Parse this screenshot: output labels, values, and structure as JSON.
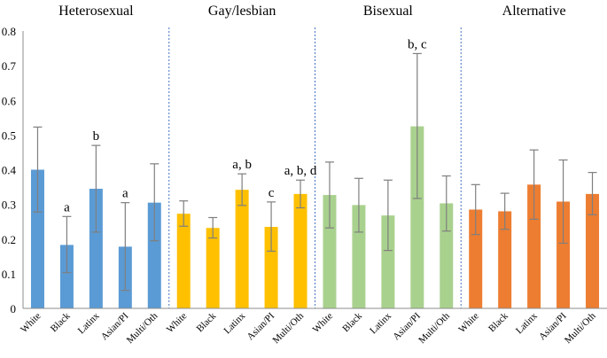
{
  "chart_data": {
    "type": "bar",
    "title": "",
    "xlabel": "",
    "ylabel": "",
    "ylim": [
      0,
      0.8
    ],
    "yticks": [
      "0",
      "0.1",
      "0.2",
      "0.3",
      "0.4",
      "0.5",
      "0.6",
      "0.7",
      "0.8"
    ],
    "grid": false,
    "groups": [
      {
        "name": "Heterosexual",
        "color": "#5B9BD5",
        "categories": [
          "White",
          "Black",
          "Latinx",
          "Asian/PI",
          "Multi/Oth"
        ],
        "values": [
          0.4,
          0.183,
          0.345,
          0.178,
          0.305
        ],
        "err_low": [
          0.278,
          0.103,
          0.22,
          0.052,
          0.195
        ],
        "err_high": [
          0.523,
          0.265,
          0.47,
          0.305,
          0.417
        ],
        "annotations": [
          "",
          "a",
          "b",
          "a",
          ""
        ]
      },
      {
        "name": "Gay/lesbian",
        "color": "#FFC000",
        "categories": [
          "White",
          "Black",
          "Latinx",
          "Asian/PI",
          "Multi/Oth"
        ],
        "values": [
          0.273,
          0.232,
          0.342,
          0.235,
          0.33
        ],
        "err_low": [
          0.237,
          0.203,
          0.297,
          0.165,
          0.29
        ],
        "err_high": [
          0.31,
          0.262,
          0.388,
          0.307,
          0.37
        ],
        "annotations": [
          "",
          "",
          "a, b",
          "c",
          "a, b, d"
        ]
      },
      {
        "name": "Bisexual",
        "color": "#A9D18E",
        "categories": [
          "White",
          "Black",
          "Latinx",
          "Asian/PI",
          "Multi/Oth"
        ],
        "values": [
          0.327,
          0.298,
          0.268,
          0.525,
          0.303
        ],
        "err_low": [
          0.232,
          0.22,
          0.167,
          0.317,
          0.223
        ],
        "err_high": [
          0.422,
          0.375,
          0.37,
          0.735,
          0.382
        ],
        "annotations": [
          "",
          "",
          "",
          "b, c",
          ""
        ]
      },
      {
        "name": "Alternative",
        "color": "#ED7D31",
        "categories": [
          "White",
          "Black",
          "Latinx",
          "Asian/PI",
          "Multi/Oth"
        ],
        "values": [
          0.285,
          0.28,
          0.357,
          0.308,
          0.33
        ],
        "err_low": [
          0.213,
          0.228,
          0.257,
          0.188,
          0.27
        ],
        "err_high": [
          0.357,
          0.332,
          0.457,
          0.428,
          0.392
        ],
        "annotations": [
          "",
          "",
          "",
          "",
          ""
        ]
      }
    ]
  }
}
